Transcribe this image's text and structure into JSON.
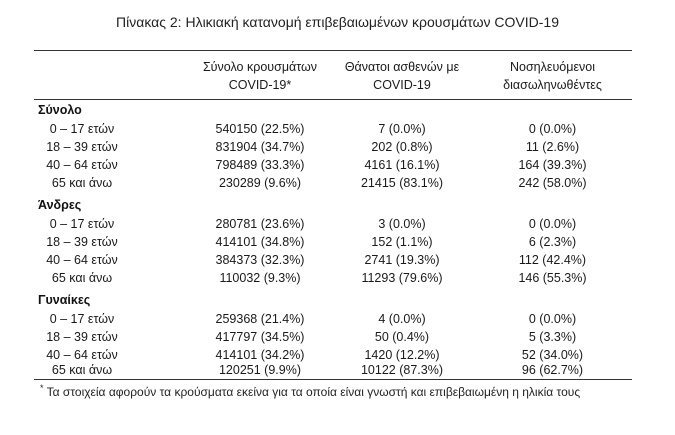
{
  "table": {
    "title": "Πίνακας 2: Ηλικιακή κατανομή επιβεβαιωμένων κρουσμάτων COVID-19",
    "headers": [
      [
        "Σύνολο κρουσμάτων",
        "COVID-19*"
      ],
      [
        "Θάνατοι ασθενών με",
        "COVID-19"
      ],
      [
        "Νοσηλευόμενοι",
        "διασωληνωθέντες"
      ]
    ],
    "groups": [
      {
        "name": "Σύνολο",
        "rows": [
          {
            "label": "0 – 17 ετών",
            "cases": "540150 (22.5%)",
            "deaths": "7 (0.0%)",
            "intubated": "0 (0.0%)"
          },
          {
            "label": "18 – 39 ετών",
            "cases": "831904 (34.7%)",
            "deaths": "202 (0.8%)",
            "intubated": "11 (2.6%)"
          },
          {
            "label": "40 – 64 ετών",
            "cases": "798489 (33.3%)",
            "deaths": "4161 (16.1%)",
            "intubated": "164 (39.3%)"
          },
          {
            "label": "65 και άνω",
            "cases": "230289 (9.6%)",
            "deaths": "21415 (83.1%)",
            "intubated": "242 (58.0%)"
          }
        ]
      },
      {
        "name": "Άνδρες",
        "rows": [
          {
            "label": "0 – 17 ετών",
            "cases": "280781 (23.6%)",
            "deaths": "3 (0.0%)",
            "intubated": "0 (0.0%)"
          },
          {
            "label": "18 – 39 ετών",
            "cases": "414101 (34.8%)",
            "deaths": "152 (1.1%)",
            "intubated": "6 (2.3%)"
          },
          {
            "label": "40 – 64 ετών",
            "cases": "384373 (32.3%)",
            "deaths": "2741 (19.3%)",
            "intubated": "112 (42.4%)"
          },
          {
            "label": "65 και άνω",
            "cases": "110032 (9.3%)",
            "deaths": "11293 (79.6%)",
            "intubated": "146 (55.3%)"
          }
        ]
      },
      {
        "name": "Γυναίκες",
        "rows": [
          {
            "label": "0 – 17 ετών",
            "cases": "259368 (21.4%)",
            "deaths": "4 (0.0%)",
            "intubated": "0 (0.0%)"
          },
          {
            "label": "18 – 39 ετών",
            "cases": "417797 (34.5%)",
            "deaths": "50 (0.4%)",
            "intubated": "5 (3.3%)"
          },
          {
            "label": "40 – 64 ετών",
            "cases": "414101 (34.2%)",
            "deaths": "1420 (12.2%)",
            "intubated": "52 (34.0%)"
          },
          {
            "label": "65 και άνω",
            "cases": "120251 (9.9%)",
            "deaths": "10122 (87.3%)",
            "intubated": "96 (62.7%)"
          }
        ]
      }
    ],
    "footnote_mark": "*",
    "footnote": "Τα στοιχεία αφορούν τα κρούσματα εκείνα για τα οποία είναι γνωστή και επιβεβαιωμένη η ηλικία τους"
  }
}
